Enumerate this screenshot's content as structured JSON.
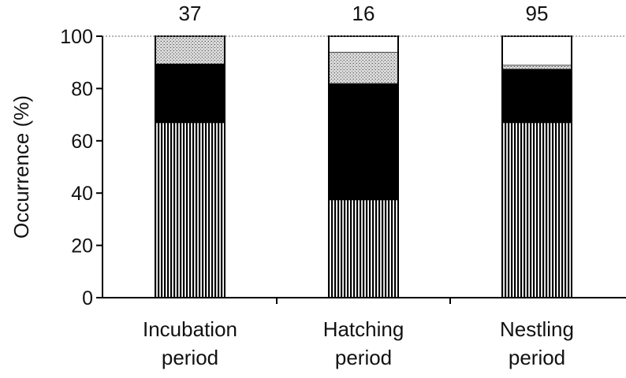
{
  "chart_data": {
    "type": "bar",
    "stacked": true,
    "title": "",
    "xlabel": "",
    "ylabel": "Occurrence (%)",
    "ylim": [
      0,
      100
    ],
    "yticks": [
      0,
      20,
      40,
      60,
      80,
      100
    ],
    "grid": false,
    "legend": "none",
    "categories": [
      "Incubation period",
      "Hatching period",
      "Nestling period"
    ],
    "category_lines": [
      [
        "Incubation",
        "period"
      ],
      [
        "Hatching",
        "period"
      ],
      [
        "Nestling",
        "period"
      ]
    ],
    "sample_sizes": [
      "37",
      "16",
      "95"
    ],
    "series": [
      {
        "values": [
          67,
          37.5,
          67
        ],
        "pattern": "vertical-stripes",
        "color": "#000000"
      },
      {
        "values": [
          22.5,
          44.5,
          20.5
        ],
        "pattern": "solid",
        "color": "#000000"
      },
      {
        "values": [
          10.5,
          12,
          1.5
        ],
        "pattern": "stipple",
        "color": "#bbbbbb"
      },
      {
        "values": [
          0,
          6,
          11
        ],
        "pattern": "none",
        "color": "#ffffff"
      }
    ]
  }
}
